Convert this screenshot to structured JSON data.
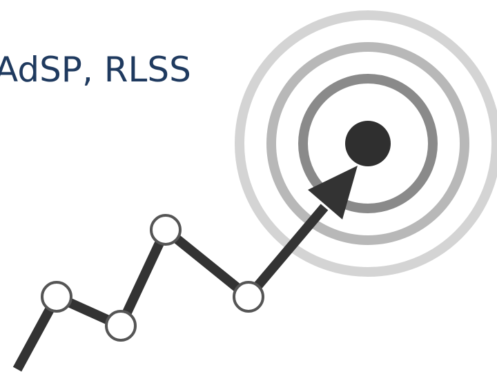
{
  "title": "AdSP, RLSS"
}
